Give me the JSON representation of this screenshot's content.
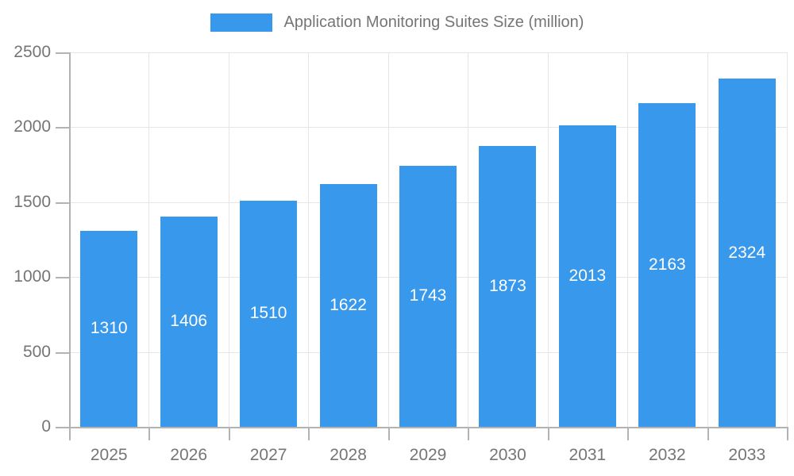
{
  "legend": {
    "label": "Application Monitoring Suites Size (million)"
  },
  "chart_data": {
    "type": "bar",
    "title": "Application Monitoring Suites Size (million)",
    "categories": [
      "2025",
      "2026",
      "2027",
      "2028",
      "2029",
      "2030",
      "2031",
      "2032",
      "2033"
    ],
    "values": [
      1310,
      1406,
      1510,
      1622,
      1743,
      1873,
      2013,
      2163,
      2324
    ],
    "value_labels": [
      "1310",
      "1406",
      "1510",
      "1622",
      "1743",
      "1873",
      "2013",
      "2163",
      "2324"
    ],
    "xlabel": "",
    "ylabel": "",
    "ylim": [
      0,
      2500
    ],
    "yticks": [
      0,
      500,
      1000,
      1500,
      2000,
      2500
    ],
    "ytick_labels": [
      "0",
      "500",
      "1000",
      "1500",
      "2000",
      "2500"
    ],
    "grid": true,
    "legend_position": "top",
    "colors": {
      "bar": "#3898EC",
      "bar_value_text": "#ffffff",
      "axis_text": "#757575",
      "grid_line": "#e6e6e6",
      "axis_line": "#b3b3b3",
      "background": "#ffffff"
    }
  }
}
